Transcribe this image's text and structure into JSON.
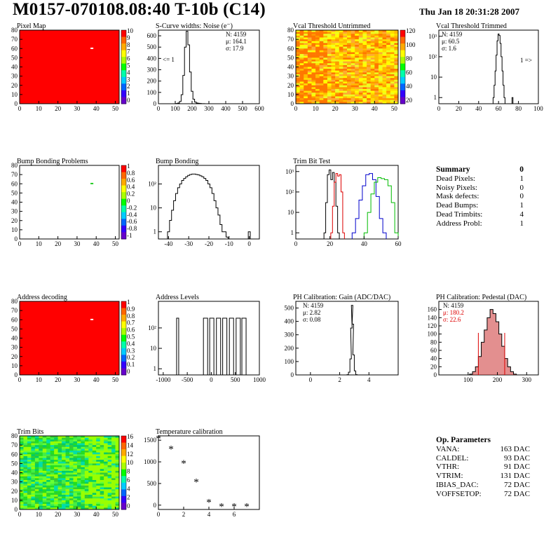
{
  "header": {
    "title": "M0157-070108.08:40 T-10b (C14)",
    "date": "Thu Jan 18 20:31:28 2007"
  },
  "colors": {
    "map_red": "#ff0000",
    "noise_line": "#000000",
    "trim_red": "#dd0000",
    "trim_blue": "#0000cc",
    "trim_green": "#00bb00",
    "pedestal_fill": "#cc3333"
  },
  "chart_data": [
    {
      "id": "pixel-map",
      "type": "heatmap",
      "title": "Pixel Map",
      "xlim": [
        0,
        52
      ],
      "ylim": [
        0,
        80
      ],
      "xticks": [
        "0",
        "10",
        "20",
        "30",
        "40",
        "50"
      ],
      "yticks": [
        "0",
        "10",
        "20",
        "30",
        "40",
        "50",
        "60",
        "70",
        "80"
      ],
      "palette_ticks": [
        "10",
        "9",
        "8",
        "7",
        "6",
        "5",
        "4",
        "3",
        "2",
        "1",
        "0"
      ],
      "fill_value": 10,
      "notes": [
        "single white pixel near column 37, row 60"
      ]
    },
    {
      "id": "scurve-noise",
      "type": "bar",
      "title": "S-Curve widths: Noise (e⁻)",
      "xlim": [
        0,
        600
      ],
      "ylim": [
        0,
        650
      ],
      "xticks": [
        "0",
        "100",
        "200",
        "300",
        "400",
        "500",
        "600"
      ],
      "yticks": [
        "0",
        "100",
        "200",
        "300",
        "400",
        "500",
        "600"
      ],
      "stats": [
        "N: 4159",
        "μ: 164.1",
        "σ: 17.9"
      ],
      "annotation": "<= 1",
      "x": [
        110,
        120,
        130,
        140,
        150,
        160,
        170,
        180,
        190,
        200,
        210,
        220,
        230,
        240,
        250,
        260,
        270,
        280
      ],
      "values": [
        2,
        6,
        20,
        80,
        250,
        500,
        640,
        520,
        280,
        110,
        40,
        15,
        6,
        4,
        2,
        1,
        1,
        0
      ]
    },
    {
      "id": "vcal-untrimmed",
      "type": "heatmap",
      "title": "Vcal Threshold Untrimmed",
      "xlim": [
        0,
        52
      ],
      "ylim": [
        0,
        80
      ],
      "xticks": [
        "0",
        "10",
        "20",
        "30",
        "40",
        "50"
      ],
      "yticks": [
        "0",
        "10",
        "20",
        "30",
        "40",
        "50",
        "60",
        "70",
        "80"
      ],
      "palette_ticks": [
        "120",
        "100",
        "80",
        "60",
        "40",
        "20"
      ],
      "notes": [
        "mostly yellow/orange, more orange on left columns"
      ]
    },
    {
      "id": "vcal-trimmed",
      "type": "bar",
      "title": "Vcal Threshold Trimmed",
      "log_y": true,
      "xlim": [
        0,
        100
      ],
      "ylim": [
        0.5,
        2000
      ],
      "xticks": [
        "0",
        "20",
        "40",
        "60",
        "80",
        "100"
      ],
      "yticks": [
        "1",
        "10",
        "10²",
        "10³"
      ],
      "stats": [
        "N: 4159",
        "μ: 60.5",
        "σ: 1.6"
      ],
      "annotation": "1 =>",
      "x": [
        55,
        56,
        57,
        58,
        59,
        60,
        61,
        62,
        63,
        64,
        65,
        66,
        74
      ],
      "values": [
        1,
        4,
        20,
        120,
        600,
        1300,
        1100,
        450,
        100,
        20,
        4,
        1,
        1
      ]
    },
    {
      "id": "bump-bonding-problems",
      "type": "heatmap",
      "title": "Bump Bonding Problems",
      "xlim": [
        0,
        52
      ],
      "ylim": [
        0,
        80
      ],
      "xticks": [
        "0",
        "10",
        "20",
        "30",
        "40",
        "50"
      ],
      "yticks": [
        "0",
        "10",
        "20",
        "30",
        "40",
        "50",
        "60",
        "70",
        "80"
      ],
      "palette_ticks": [
        "1",
        "0.8",
        "0.6",
        "0.4",
        "0.2",
        "0",
        "-0.2",
        "-0.4",
        "-0.6",
        "-0.8",
        "-1"
      ],
      "notes": [
        "single green pixel near column 37, row 60"
      ]
    },
    {
      "id": "bump-bonding",
      "type": "bar",
      "title": "Bump Bonding",
      "log_y": true,
      "xlim": [
        -45,
        5
      ],
      "ylim": [
        0.5,
        600
      ],
      "xticks": [
        "-40",
        "-30",
        "-20",
        "-10",
        "0"
      ],
      "yticks": [
        "1",
        "10",
        "10²"
      ],
      "x": [
        -40,
        -39,
        -38,
        -37,
        -36,
        -35,
        -34,
        -33,
        -32,
        -31,
        -30,
        -29,
        -28,
        -27,
        -26,
        -25,
        -24,
        -23,
        -22,
        -21,
        -20,
        -19,
        -18,
        -17,
        -16,
        -15,
        -14,
        -13,
        -12,
        -11,
        -10,
        0
      ],
      "values": [
        1,
        3,
        8,
        20,
        40,
        70,
        100,
        140,
        170,
        200,
        230,
        250,
        260,
        260,
        250,
        240,
        220,
        200,
        170,
        140,
        100,
        70,
        40,
        20,
        10,
        5,
        2,
        1,
        1,
        0.6,
        0,
        1
      ]
    },
    {
      "id": "trim-bit-test",
      "type": "line",
      "title": "Trim Bit Test",
      "log_y": true,
      "xlim": [
        0,
        60
      ],
      "ylim": [
        0.5,
        2000
      ],
      "xticks": [
        "0",
        "20",
        "40",
        "60"
      ],
      "yticks": [
        "1",
        "10",
        "10²",
        "10³"
      ],
      "series": [
        {
          "color": "#000000",
          "x": [
            17,
            18,
            19,
            20,
            21,
            22,
            23,
            24,
            25
          ],
          "values": [
            1,
            30,
            700,
            1200,
            400,
            900,
            300,
            20,
            1
          ]
        },
        {
          "color": "#dd0000",
          "x": [
            21,
            22,
            23,
            24,
            25,
            26,
            27,
            28
          ],
          "values": [
            1,
            20,
            300,
            800,
            600,
            700,
            100,
            1
          ]
        },
        {
          "color": "#0000cc",
          "x": [
            34,
            36,
            38,
            40,
            42,
            44,
            46,
            48,
            50,
            52
          ],
          "values": [
            1,
            5,
            40,
            200,
            700,
            800,
            400,
            60,
            5,
            1
          ]
        },
        {
          "color": "#00bb00",
          "x": [
            41,
            43,
            45,
            47,
            49,
            51,
            53,
            55,
            57,
            59
          ],
          "values": [
            1,
            10,
            80,
            300,
            500,
            450,
            400,
            200,
            30,
            1
          ]
        }
      ]
    },
    {
      "id": "address-decoding",
      "type": "heatmap",
      "title": "Address decoding",
      "xlim": [
        0,
        52
      ],
      "ylim": [
        0,
        80
      ],
      "xticks": [
        "0",
        "10",
        "20",
        "30",
        "40",
        "50"
      ],
      "yticks": [
        "0",
        "10",
        "20",
        "30",
        "40",
        "50",
        "60",
        "70",
        "80"
      ],
      "palette_ticks": [
        "1",
        "0.9",
        "0.8",
        "0.7",
        "0.6",
        "0.5",
        "0.4",
        "0.3",
        "0.2",
        "0.1",
        "0"
      ],
      "notes": [
        "single white pixel near column 37, row 60"
      ]
    },
    {
      "id": "address-levels",
      "type": "bar",
      "title": "Address Levels",
      "log_y": true,
      "xlim": [
        -1100,
        1000
      ],
      "ylim": [
        0.5,
        2000
      ],
      "xticks": [
        "-1000",
        "-500",
        "0",
        "500",
        "1000"
      ],
      "yticks": [
        "1",
        "10",
        "10²"
      ],
      "peaks": [
        -700,
        -120,
        10,
        150,
        280,
        420,
        560,
        680
      ],
      "peak_values": [
        300,
        300,
        300,
        300,
        300,
        300,
        300,
        300
      ]
    },
    {
      "id": "ph-gain",
      "type": "bar",
      "title": "PH Calibration: Gain (ADC/DAC)",
      "xlim": [
        -1,
        6
      ],
      "ylim": [
        0,
        550
      ],
      "xticks": [
        "0",
        "2",
        "4"
      ],
      "yticks": [
        "0",
        "100",
        "200",
        "300",
        "400",
        "500"
      ],
      "stats": [
        "N: 4159",
        "μ: 2.82",
        "σ: 0.08"
      ],
      "x": [
        2.55,
        2.65,
        2.75,
        2.8,
        2.85,
        2.9,
        2.95,
        3.05,
        3.15
      ],
      "values": [
        2,
        20,
        120,
        350,
        520,
        380,
        150,
        30,
        2
      ]
    },
    {
      "id": "ph-pedestal",
      "type": "bar",
      "title": "PH Calibration: Pedestal (DAC)",
      "xlim": [
        0,
        340
      ],
      "ylim": [
        0,
        180
      ],
      "xticks": [
        "100",
        "200",
        "300"
      ],
      "yticks": [
        "0",
        "20",
        "40",
        "60",
        "80",
        "100",
        "120",
        "140",
        "160"
      ],
      "stats": [
        "N: 4159",
        "μ: 180.2",
        "σ: 22.6"
      ],
      "x": [
        110,
        120,
        130,
        140,
        150,
        160,
        170,
        180,
        190,
        200,
        210,
        220,
        230,
        240,
        250,
        260
      ],
      "values": [
        2,
        8,
        20,
        45,
        80,
        110,
        140,
        160,
        150,
        130,
        100,
        70,
        40,
        20,
        8,
        2
      ]
    },
    {
      "id": "trim-bits",
      "type": "heatmap",
      "title": "Trim Bits",
      "xlim": [
        0,
        52
      ],
      "ylim": [
        0,
        80
      ],
      "xticks": [
        "0",
        "10",
        "20",
        "30",
        "40",
        "50"
      ],
      "yticks": [
        "0",
        "10",
        "20",
        "30",
        "40",
        "50",
        "60",
        "70",
        "80"
      ],
      "palette_ticks": [
        "16",
        "14",
        "12",
        "10",
        "8",
        "6",
        "4",
        "2",
        "0"
      ],
      "notes": [
        "mostly green/cyan, yellow-green on right columns"
      ]
    },
    {
      "id": "temperature-calibration",
      "type": "scatter",
      "title": "Temperature calibration",
      "xlim": [
        0,
        8
      ],
      "ylim": [
        -100,
        1600
      ],
      "xticks": [
        "0",
        "2",
        "4",
        "6"
      ],
      "yticks": [
        "0",
        "500",
        "1000",
        "1500"
      ],
      "x": [
        0,
        1,
        2,
        3,
        4,
        5,
        6,
        7
      ],
      "values": [
        1540,
        1300,
        970,
        540,
        70,
        -30,
        -30,
        -30
      ]
    }
  ],
  "summary": {
    "title": "Summary",
    "total": "0",
    "rows": [
      {
        "label": "Dead Pixels:",
        "value": "1"
      },
      {
        "label": "Noisy Pixels:",
        "value": "0"
      },
      {
        "label": "Mask defects:",
        "value": "0"
      },
      {
        "label": "Dead Bumps:",
        "value": "1"
      },
      {
        "label": "Dead Trimbits:",
        "value": "4"
      },
      {
        "label": "Address Probl:",
        "value": "1"
      }
    ]
  },
  "op_params": {
    "title": "Op. Parameters",
    "rows": [
      {
        "label": "VANA:",
        "value": "163 DAC"
      },
      {
        "label": "CALDEL:",
        "value": "93 DAC"
      },
      {
        "label": "VTHR:",
        "value": "91 DAC"
      },
      {
        "label": "VTRIM:",
        "value": "131 DAC"
      },
      {
        "label": "IBIAS_DAC:",
        "value": "72 DAC"
      },
      {
        "label": "VOFFSETOP:",
        "value": "72 DAC"
      }
    ]
  }
}
